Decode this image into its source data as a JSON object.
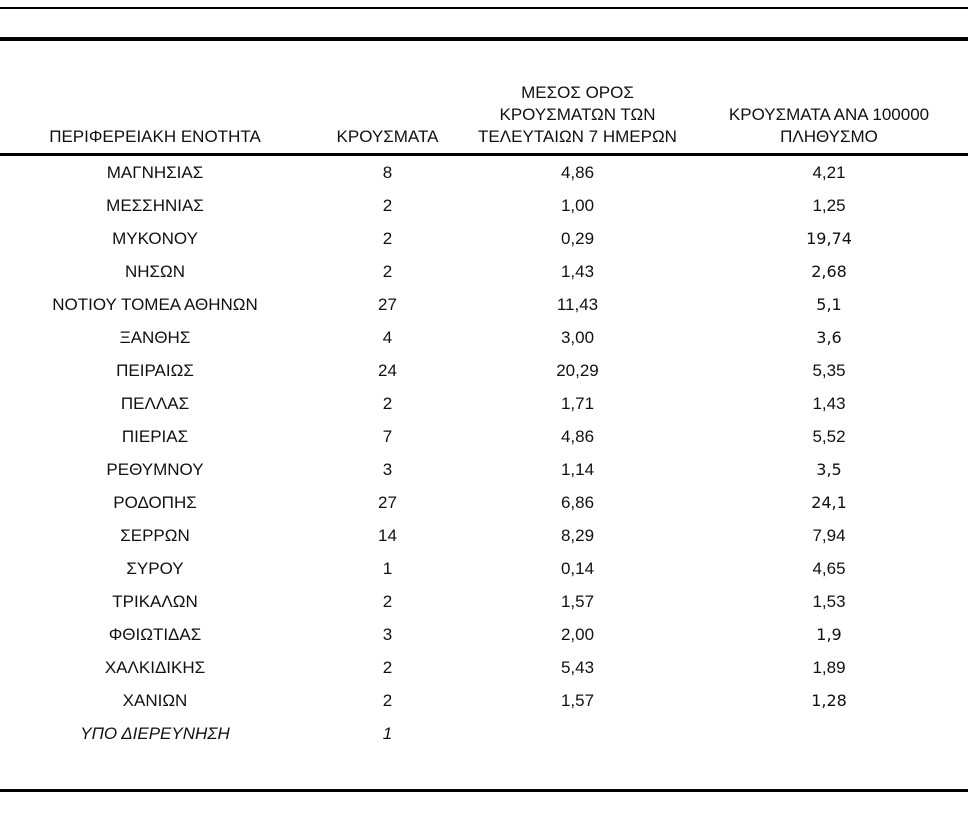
{
  "table": {
    "columns": {
      "region": "ΠΕΡΙΦΕΡΕΙΑΚΗ ΕΝΟΤΗΤΑ",
      "cases": "ΚΡΟΥΣΜΑΤΑ",
      "avg7d": "ΜΕΣΟΣ ΟΡΟΣ\nΚΡΟΥΣΜΑΤΩΝ ΤΩΝ\nΤΕΛΕΥΤΑΙΩΝ 7 ΗΜΕΡΩΝ",
      "per100k": "ΚΡΟΥΣΜΑΤΑ ΑΝΑ 100000\nΠΛΗΘΥΣΜΟ"
    },
    "rows": [
      {
        "region": "ΜΑΓΝΗΣΙΑΣ",
        "cases": "8",
        "avg7d": "4,86",
        "per100k": "4,21",
        "row_class": "",
        "per100k_class": ""
      },
      {
        "region": "ΜΕΣΣΗΝΙΑΣ",
        "cases": "2",
        "avg7d": "1,00",
        "per100k": "1,25",
        "row_class": "",
        "per100k_class": ""
      },
      {
        "region": "ΜΥΚΟΝΟΥ",
        "cases": "2",
        "avg7d": "0,29",
        "per100k": "19,74",
        "row_class": "",
        "per100k_class": "alt"
      },
      {
        "region": "ΝΗΣΩΝ",
        "cases": "2",
        "avg7d": "1,43",
        "per100k": "2,68",
        "row_class": "",
        "per100k_class": "alt"
      },
      {
        "region": "ΝΟΤΙΟΥ ΤΟΜΕΑ ΑΘΗΝΩΝ",
        "cases": "27",
        "avg7d": "11,43",
        "per100k": "5,1",
        "row_class": "",
        "per100k_class": "alt"
      },
      {
        "region": "ΞΑΝΘΗΣ",
        "cases": "4",
        "avg7d": "3,00",
        "per100k": "3,6",
        "row_class": "",
        "per100k_class": "alt"
      },
      {
        "region": "ΠΕΙΡΑΙΩΣ",
        "cases": "24",
        "avg7d": "20,29",
        "per100k": "5,35",
        "row_class": "",
        "per100k_class": ""
      },
      {
        "region": "ΠΕΛΛΑΣ",
        "cases": "2",
        "avg7d": "1,71",
        "per100k": "1,43",
        "row_class": "",
        "per100k_class": ""
      },
      {
        "region": "ΠΙΕΡΙΑΣ",
        "cases": "7",
        "avg7d": "4,86",
        "per100k": "5,52",
        "row_class": "",
        "per100k_class": ""
      },
      {
        "region": "ΡΕΘΥΜΝΟΥ",
        "cases": "3",
        "avg7d": "1,14",
        "per100k": "3,5",
        "row_class": "",
        "per100k_class": "alt"
      },
      {
        "region": "ΡΟΔΟΠΗΣ",
        "cases": "27",
        "avg7d": "6,86",
        "per100k": "24,1",
        "row_class": "",
        "per100k_class": "alt"
      },
      {
        "region": "ΣΕΡΡΩΝ",
        "cases": "14",
        "avg7d": "8,29",
        "per100k": "7,94",
        "row_class": "",
        "per100k_class": ""
      },
      {
        "region": "ΣΥΡΟΥ",
        "cases": "1",
        "avg7d": "0,14",
        "per100k": "4,65",
        "row_class": "",
        "per100k_class": ""
      },
      {
        "region": "ΤΡΙΚΑΛΩΝ",
        "cases": "2",
        "avg7d": "1,57",
        "per100k": "1,53",
        "row_class": "",
        "per100k_class": ""
      },
      {
        "region": "ΦΘΙΩΤΙΔΑΣ",
        "cases": "3",
        "avg7d": "2,00",
        "per100k": "1,9",
        "row_class": "",
        "per100k_class": "alt"
      },
      {
        "region": "ΧΑΛΚΙΔΙΚΗΣ",
        "cases": "2",
        "avg7d": "5,43",
        "per100k": "1,89",
        "row_class": "",
        "per100k_class": ""
      },
      {
        "region": "ΧΑΝΙΩΝ",
        "cases": "2",
        "avg7d": "1,57",
        "per100k": "1,28",
        "row_class": "",
        "per100k_class": "alt"
      },
      {
        "region": "ΥΠΟ ΔΙΕΡΕΥΝΗΣΗ",
        "cases": "1",
        "avg7d": "",
        "per100k": "",
        "row_class": "italic",
        "per100k_class": ""
      }
    ]
  }
}
